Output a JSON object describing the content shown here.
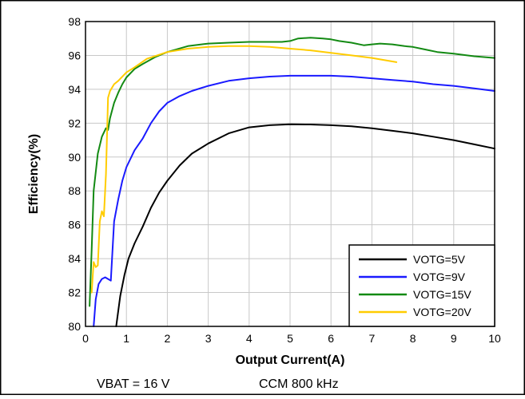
{
  "chart_data": {
    "type": "line",
    "title": "",
    "xlabel": "Output Current(A)",
    "ylabel": "Efficiency(%)",
    "xlim": [
      0,
      10
    ],
    "ylim": [
      80,
      98
    ],
    "xticks": [
      0,
      1,
      2,
      3,
      4,
      5,
      6,
      7,
      8,
      9,
      10
    ],
    "yticks": [
      80,
      82,
      84,
      86,
      88,
      90,
      92,
      94,
      96,
      98
    ],
    "grid": true,
    "legend_position": "bottom-right",
    "series": [
      {
        "name": "VOTG=5V",
        "color": "#000000",
        "x": [
          0.75,
          0.85,
          0.95,
          1.05,
          1.2,
          1.4,
          1.6,
          1.8,
          2.0,
          2.3,
          2.6,
          3.0,
          3.5,
          4.0,
          4.5,
          5.0,
          5.5,
          6.0,
          6.5,
          7.0,
          7.5,
          8.0,
          8.5,
          9.0,
          9.5,
          10.0
        ],
        "y": [
          80.0,
          81.8,
          83.0,
          84.0,
          84.9,
          85.9,
          87.0,
          87.9,
          88.6,
          89.5,
          90.2,
          90.8,
          91.4,
          91.75,
          91.88,
          91.93,
          91.92,
          91.88,
          91.82,
          91.7,
          91.55,
          91.4,
          91.2,
          91.0,
          90.75,
          90.5
        ]
      },
      {
        "name": "VOTG=9V",
        "color": "#1a1aff",
        "x": [
          0.2,
          0.25,
          0.32,
          0.4,
          0.48,
          0.55,
          0.62,
          0.7,
          0.8,
          0.9,
          1.0,
          1.2,
          1.4,
          1.6,
          1.8,
          2.0,
          2.3,
          2.6,
          3.0,
          3.5,
          4.0,
          4.5,
          5.0,
          5.5,
          6.0,
          6.5,
          7.0,
          7.5,
          8.0,
          8.5,
          9.0,
          9.5,
          10.0
        ],
        "y": [
          80.0,
          81.6,
          82.5,
          82.8,
          82.9,
          82.8,
          82.7,
          86.2,
          87.5,
          88.6,
          89.4,
          90.4,
          91.1,
          92.0,
          92.7,
          93.2,
          93.6,
          93.9,
          94.2,
          94.5,
          94.65,
          94.75,
          94.8,
          94.8,
          94.8,
          94.75,
          94.65,
          94.55,
          94.45,
          94.3,
          94.2,
          94.05,
          93.9
        ]
      },
      {
        "name": "VOTG=15V",
        "color": "#138a13",
        "x": [
          0.1,
          0.15,
          0.2,
          0.3,
          0.4,
          0.5,
          0.55,
          0.6,
          0.7,
          0.8,
          0.9,
          1.0,
          1.2,
          1.4,
          1.7,
          2.0,
          2.5,
          3.0,
          3.5,
          4.0,
          4.5,
          4.8,
          5.0,
          5.2,
          5.5,
          5.8,
          6.0,
          6.2,
          6.5,
          6.8,
          7.0,
          7.2,
          7.5,
          7.8,
          8.0,
          8.3,
          8.6,
          9.0,
          9.5,
          10.0
        ],
        "y": [
          81.2,
          84.5,
          88.0,
          90.2,
          91.2,
          91.7,
          91.6,
          92.3,
          93.2,
          93.8,
          94.3,
          94.7,
          95.2,
          95.5,
          95.9,
          96.2,
          96.55,
          96.7,
          96.75,
          96.8,
          96.8,
          96.8,
          96.85,
          97.0,
          97.05,
          97.0,
          96.95,
          96.85,
          96.75,
          96.6,
          96.65,
          96.7,
          96.65,
          96.55,
          96.5,
          96.35,
          96.2,
          96.1,
          95.95,
          95.85
        ]
      },
      {
        "name": "VOTG=20V",
        "color": "#ffcc00",
        "x": [
          0.15,
          0.2,
          0.25,
          0.3,
          0.35,
          0.4,
          0.45,
          0.5,
          0.55,
          0.6,
          0.7,
          0.8,
          1.0,
          1.2,
          1.5,
          2.0,
          2.5,
          3.0,
          3.5,
          4.0,
          4.5,
          5.0,
          5.5,
          6.0,
          6.5,
          7.0,
          7.6
        ],
        "y": [
          82.0,
          83.8,
          83.5,
          83.6,
          86.2,
          86.8,
          86.5,
          89.0,
          93.5,
          93.9,
          94.3,
          94.5,
          95.0,
          95.3,
          95.8,
          96.2,
          96.4,
          96.5,
          96.55,
          96.55,
          96.5,
          96.4,
          96.3,
          96.15,
          96.0,
          95.85,
          95.6
        ]
      }
    ]
  },
  "captions": {
    "vbat": "VBAT = 16 V",
    "mode": "CCM 800 kHz"
  }
}
